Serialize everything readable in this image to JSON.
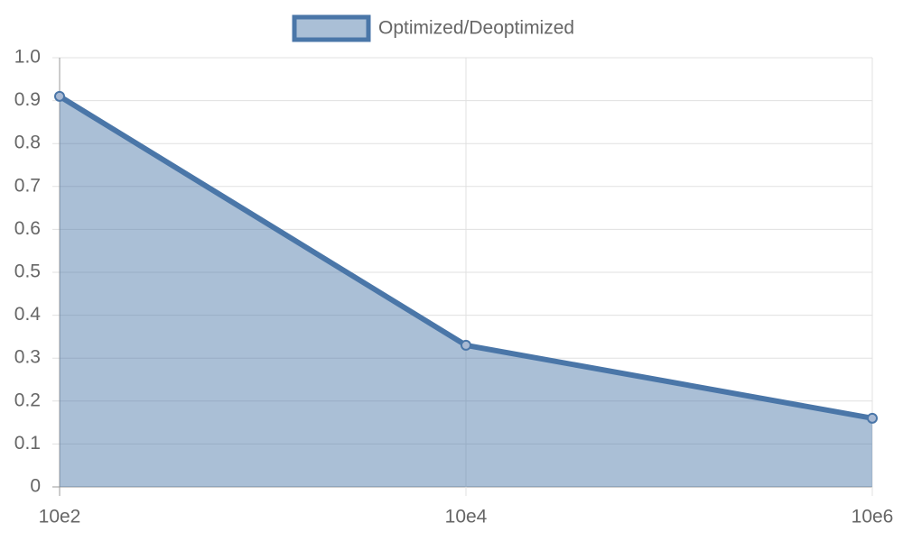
{
  "chart_data": {
    "type": "line",
    "fill": true,
    "grid": true,
    "legend": "top",
    "categories": [
      "10e2",
      "10e4",
      "10e6"
    ],
    "series": [
      {
        "name": "Optimized/Deoptimized",
        "color": "#4a76a8",
        "values": [
          0.91,
          0.33,
          0.16
        ]
      }
    ],
    "ylim": [
      0,
      1
    ],
    "yticks": [
      0,
      0.1,
      0.2,
      0.3,
      0.4,
      0.5,
      0.6,
      0.7,
      0.8,
      0.9,
      {
        "value": 1,
        "label": "1.0"
      }
    ]
  }
}
